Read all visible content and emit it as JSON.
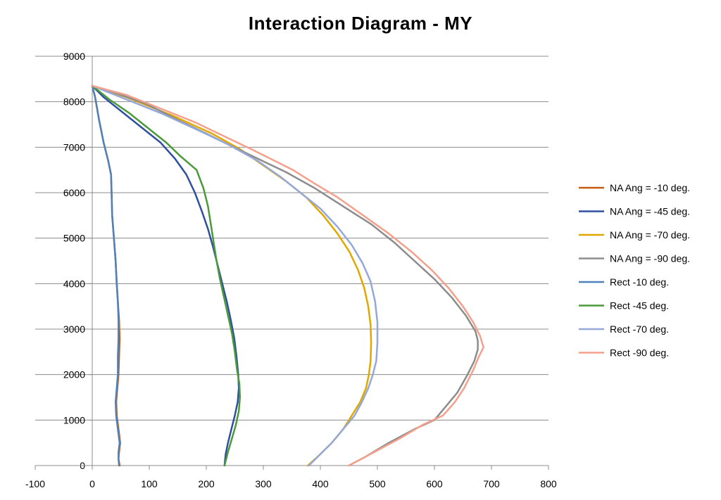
{
  "chart_data": {
    "type": "line",
    "title": "Interaction Diagram - MY",
    "xlabel": "",
    "ylabel": "",
    "xlim": [
      -100,
      800
    ],
    "ylim": [
      0,
      9000
    ],
    "x_ticks": [
      -100,
      0,
      100,
      200,
      300,
      400,
      500,
      600,
      700,
      800
    ],
    "y_ticks": [
      0,
      1000,
      2000,
      3000,
      4000,
      5000,
      6000,
      7000,
      8000,
      9000
    ],
    "grid": "horizontal",
    "legend": "right",
    "series": [
      {
        "name": "NA Ang = -10 deg.",
        "color": "#c55a11",
        "points": [
          [
            0,
            8350
          ],
          [
            5,
            8100
          ],
          [
            12,
            7600
          ],
          [
            20,
            7100
          ],
          [
            28,
            6700
          ],
          [
            33,
            6400
          ],
          [
            34,
            6000
          ],
          [
            35,
            5500
          ],
          [
            38,
            5000
          ],
          [
            41,
            4500
          ],
          [
            43,
            4000
          ],
          [
            45,
            3600
          ],
          [
            47,
            3200
          ],
          [
            48,
            2800
          ],
          [
            47,
            2400
          ],
          [
            46,
            2000
          ],
          [
            44,
            1700
          ],
          [
            42,
            1400
          ],
          [
            43,
            1100
          ],
          [
            46,
            800
          ],
          [
            49,
            500
          ],
          [
            47,
            300
          ],
          [
            46,
            150
          ],
          [
            48,
            0
          ]
        ]
      },
      {
        "name": "NA Ang = -45 deg.",
        "color": "#2f4f9f",
        "points": [
          [
            0,
            8350
          ],
          [
            20,
            8100
          ],
          [
            50,
            7800
          ],
          [
            90,
            7400
          ],
          [
            120,
            7100
          ],
          [
            145,
            6750
          ],
          [
            165,
            6400
          ],
          [
            180,
            6000
          ],
          [
            192,
            5600
          ],
          [
            203,
            5200
          ],
          [
            212,
            4800
          ],
          [
            220,
            4400
          ],
          [
            228,
            4000
          ],
          [
            236,
            3600
          ],
          [
            243,
            3200
          ],
          [
            249,
            2800
          ],
          [
            253,
            2400
          ],
          [
            256,
            2000
          ],
          [
            257,
            1700
          ],
          [
            255,
            1400
          ],
          [
            250,
            1100
          ],
          [
            244,
            800
          ],
          [
            238,
            500
          ],
          [
            234,
            250
          ],
          [
            232,
            0
          ]
        ]
      },
      {
        "name": "NA Ang = -70 deg.",
        "color": "#e0a800",
        "points": [
          [
            0,
            8350
          ],
          [
            60,
            8100
          ],
          [
            140,
            7700
          ],
          [
            210,
            7300
          ],
          [
            260,
            6950
          ],
          [
            300,
            6600
          ],
          [
            340,
            6250
          ],
          [
            375,
            5900
          ],
          [
            405,
            5500
          ],
          [
            430,
            5100
          ],
          [
            451,
            4700
          ],
          [
            466,
            4300
          ],
          [
            477,
            3900
          ],
          [
            484,
            3500
          ],
          [
            488,
            3100
          ],
          [
            489,
            2700
          ],
          [
            488,
            2300
          ],
          [
            485,
            2000
          ],
          [
            480,
            1700
          ],
          [
            470,
            1400
          ],
          [
            455,
            1100
          ],
          [
            440,
            800
          ],
          [
            420,
            500
          ],
          [
            400,
            250
          ],
          [
            378,
            0
          ]
        ]
      },
      {
        "name": "NA Ang = -90 deg.",
        "color": "#8c8c8c",
        "points": [
          [
            0,
            8350
          ],
          [
            40,
            8200
          ],
          [
            95,
            7950
          ],
          [
            150,
            7600
          ],
          [
            200,
            7300
          ],
          [
            240,
            7050
          ],
          [
            290,
            6750
          ],
          [
            340,
            6450
          ],
          [
            390,
            6100
          ],
          [
            440,
            5700
          ],
          [
            490,
            5300
          ],
          [
            530,
            4900
          ],
          [
            565,
            4500
          ],
          [
            600,
            4100
          ],
          [
            630,
            3700
          ],
          [
            655,
            3300
          ],
          [
            672,
            2950
          ],
          [
            676,
            2750
          ],
          [
            676,
            2550
          ],
          [
            670,
            2300
          ],
          [
            658,
            2000
          ],
          [
            640,
            1600
          ],
          [
            620,
            1300
          ],
          [
            600,
            1000
          ],
          [
            565,
            800
          ],
          [
            520,
            500
          ],
          [
            480,
            200
          ],
          [
            450,
            0
          ]
        ]
      },
      {
        "name": "Rect -10 deg.",
        "color": "#4f81bd",
        "points": [
          [
            0,
            8350
          ],
          [
            5,
            8100
          ],
          [
            12,
            7600
          ],
          [
            20,
            7100
          ],
          [
            28,
            6700
          ],
          [
            33,
            6400
          ],
          [
            34,
            6000
          ],
          [
            35,
            5500
          ],
          [
            38,
            5000
          ],
          [
            41,
            4500
          ],
          [
            43,
            4000
          ],
          [
            45,
            3600
          ],
          [
            46,
            3200
          ],
          [
            46,
            2800
          ],
          [
            45,
            2400
          ],
          [
            45,
            2000
          ],
          [
            43,
            1700
          ],
          [
            41,
            1400
          ],
          [
            42,
            1100
          ],
          [
            45,
            800
          ],
          [
            48,
            500
          ],
          [
            46,
            300
          ],
          [
            46,
            150
          ],
          [
            47,
            0
          ]
        ]
      },
      {
        "name": "Rect -45 deg.",
        "color": "#4a9a3a",
        "points": [
          [
            0,
            8350
          ],
          [
            30,
            8050
          ],
          [
            65,
            7750
          ],
          [
            100,
            7400
          ],
          [
            130,
            7100
          ],
          [
            155,
            6800
          ],
          [
            183,
            6500
          ],
          [
            195,
            6100
          ],
          [
            203,
            5700
          ],
          [
            208,
            5300
          ],
          [
            213,
            4900
          ],
          [
            218,
            4500
          ],
          [
            224,
            4100
          ],
          [
            231,
            3700
          ],
          [
            238,
            3300
          ],
          [
            245,
            2900
          ],
          [
            250,
            2500
          ],
          [
            254,
            2100
          ],
          [
            258,
            1800
          ],
          [
            259,
            1500
          ],
          [
            257,
            1200
          ],
          [
            252,
            900
          ],
          [
            245,
            600
          ],
          [
            238,
            300
          ],
          [
            232,
            0
          ]
        ]
      },
      {
        "name": "Rect -70 deg.",
        "color": "#95a8d8",
        "points": [
          [
            0,
            8350
          ],
          [
            50,
            8100
          ],
          [
            120,
            7750
          ],
          [
            190,
            7350
          ],
          [
            240,
            7050
          ],
          [
            290,
            6700
          ],
          [
            330,
            6350
          ],
          [
            365,
            6000
          ],
          [
            400,
            5650
          ],
          [
            430,
            5250
          ],
          [
            455,
            4850
          ],
          [
            474,
            4450
          ],
          [
            488,
            4050
          ],
          [
            496,
            3600
          ],
          [
            500,
            3150
          ],
          [
            500,
            2700
          ],
          [
            498,
            2300
          ],
          [
            492,
            2000
          ],
          [
            484,
            1700
          ],
          [
            473,
            1400
          ],
          [
            460,
            1100
          ],
          [
            440,
            800
          ],
          [
            420,
            500
          ],
          [
            400,
            250
          ],
          [
            380,
            0
          ]
        ]
      },
      {
        "name": "Rect -90 deg.",
        "color": "#f4a08c",
        "points": [
          [
            0,
            8350
          ],
          [
            60,
            8150
          ],
          [
            120,
            7850
          ],
          [
            180,
            7550
          ],
          [
            230,
            7250
          ],
          [
            280,
            6950
          ],
          [
            320,
            6700
          ],
          [
            352,
            6500
          ],
          [
            390,
            6200
          ],
          [
            430,
            5900
          ],
          [
            475,
            5500
          ],
          [
            520,
            5100
          ],
          [
            560,
            4700
          ],
          [
            595,
            4300
          ],
          [
            625,
            3900
          ],
          [
            650,
            3500
          ],
          [
            668,
            3150
          ],
          [
            680,
            2850
          ],
          [
            686,
            2600
          ],
          [
            678,
            2400
          ],
          [
            668,
            2100
          ],
          [
            652,
            1700
          ],
          [
            636,
            1400
          ],
          [
            615,
            1100
          ],
          [
            580,
            900
          ],
          [
            540,
            600
          ],
          [
            495,
            300
          ],
          [
            450,
            0
          ]
        ]
      }
    ]
  }
}
